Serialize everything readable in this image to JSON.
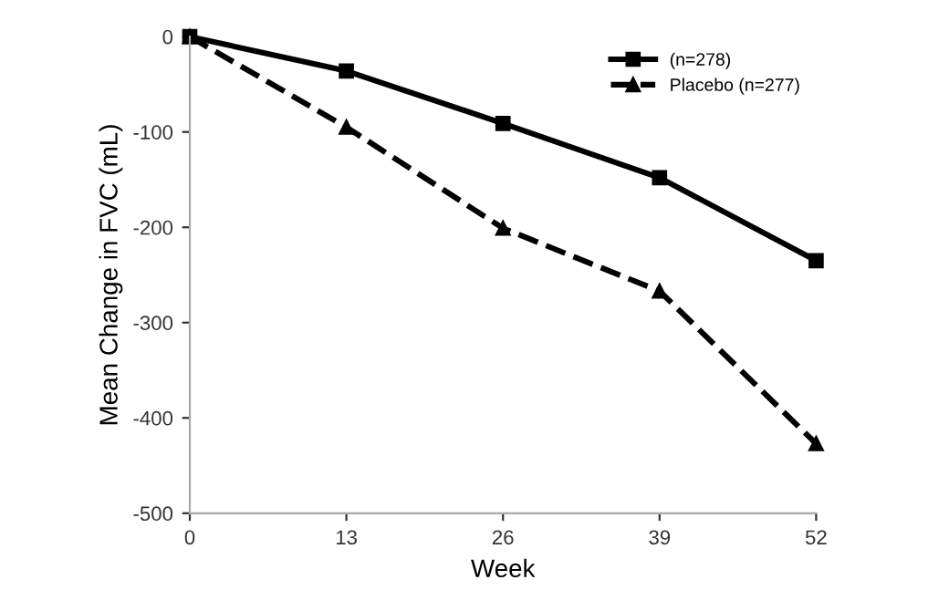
{
  "chart_data": {
    "type": "line",
    "xlabel": "Week",
    "ylabel": "Mean Change in FVC (mL)",
    "x": [
      0,
      13,
      26,
      39,
      52
    ],
    "series": [
      {
        "name": "(n=278)",
        "color": "#000000",
        "values": [
          0,
          -36,
          -91,
          -148,
          -235
        ],
        "marker": "square",
        "line_style": "solid"
      },
      {
        "name": "Placebo (n=277)",
        "color": "#000000",
        "values": [
          0,
          -95,
          -201,
          -267,
          -427
        ],
        "marker": "triangle",
        "line_style": "dashed"
      }
    ],
    "xlim": [
      0,
      52
    ],
    "xticks": [
      0,
      13,
      26,
      39,
      52
    ],
    "ylim": [
      -500,
      0
    ],
    "yticks": [
      -500,
      -400,
      -300,
      -200,
      -100,
      0
    ],
    "grid": false,
    "legend": "top right"
  }
}
